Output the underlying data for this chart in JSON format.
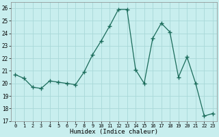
{
  "x": [
    0,
    1,
    2,
    3,
    4,
    5,
    6,
    7,
    8,
    9,
    10,
    11,
    12,
    13,
    14,
    15,
    16,
    17,
    18,
    19,
    20,
    21,
    22,
    23
  ],
  "y": [
    20.7,
    20.4,
    19.7,
    19.6,
    20.2,
    20.1,
    20.0,
    19.9,
    20.9,
    22.3,
    23.4,
    24.6,
    25.9,
    25.9,
    21.1,
    20.0,
    23.6,
    24.8,
    24.1,
    20.5,
    22.1,
    20.0,
    17.4,
    17.6
  ],
  "line_color": "#1a6b5a",
  "marker": "+",
  "marker_size": 4,
  "bg_color": "#c8eeee",
  "grid_color": "#a8d8d8",
  "xlabel": "Humidex (Indice chaleur)",
  "ylim": [
    17,
    26.5
  ],
  "xlim": [
    -0.5,
    23.5
  ],
  "yticks": [
    17,
    18,
    19,
    20,
    21,
    22,
    23,
    24,
    25,
    26
  ],
  "xticks": [
    0,
    1,
    2,
    3,
    4,
    5,
    6,
    7,
    8,
    9,
    10,
    11,
    12,
    13,
    14,
    15,
    16,
    17,
    18,
    19,
    20,
    21,
    22,
    23
  ]
}
